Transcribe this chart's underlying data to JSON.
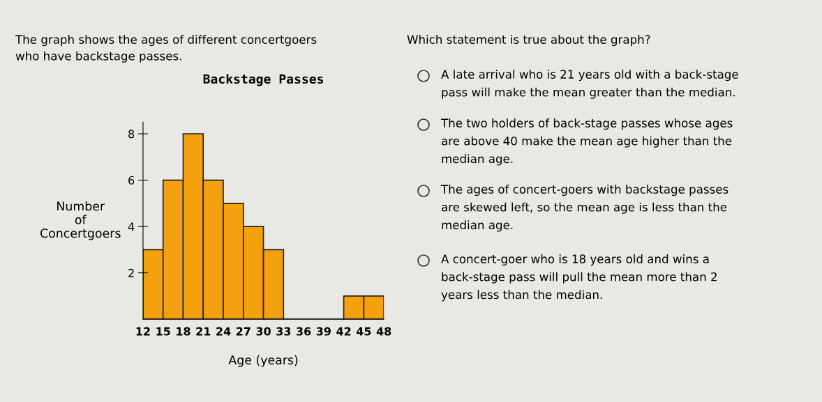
{
  "chart_data": {
    "type": "histogram",
    "title": "Backstage Passes",
    "xlabel": "Age (years)",
    "ylabel": "Number\nof\nConcertgoers",
    "bins": [
      12,
      15,
      18,
      21,
      24,
      27,
      30,
      33,
      36,
      39,
      42,
      45,
      48
    ],
    "values": [
      3,
      6,
      8,
      6,
      5,
      4,
      3,
      0,
      0,
      0,
      1,
      1
    ],
    "color": "#f5a00f",
    "xlim": [
      12,
      48
    ],
    "xticks": [
      12,
      15,
      18,
      21,
      24,
      27,
      30,
      33,
      36,
      39,
      42,
      45,
      48
    ],
    "ylim": [
      0,
      8.5
    ],
    "yticks": [
      2,
      4,
      6,
      8
    ],
    "grid": false,
    "annotations": [
      "The graph shows the ages of different concertgoers\nwho have backstage passes.",
      "Which statement is true about the graph?",
      "A late arrival who is 21 years old with a back-stage\npass will make the mean greater than the median.",
      "The two holders of back-stage passes whose ages\nare above 40 make the mean age higher than the\nmedian age.",
      "The ages of concert-goers with backstage passes\nare skewed left, so the mean age is less than the\nmedian age.",
      "A concert-goer who is 18 years old and wins a\nback-stage pass will pull the mean more than 2\nyears less than the median."
    ]
  }
}
